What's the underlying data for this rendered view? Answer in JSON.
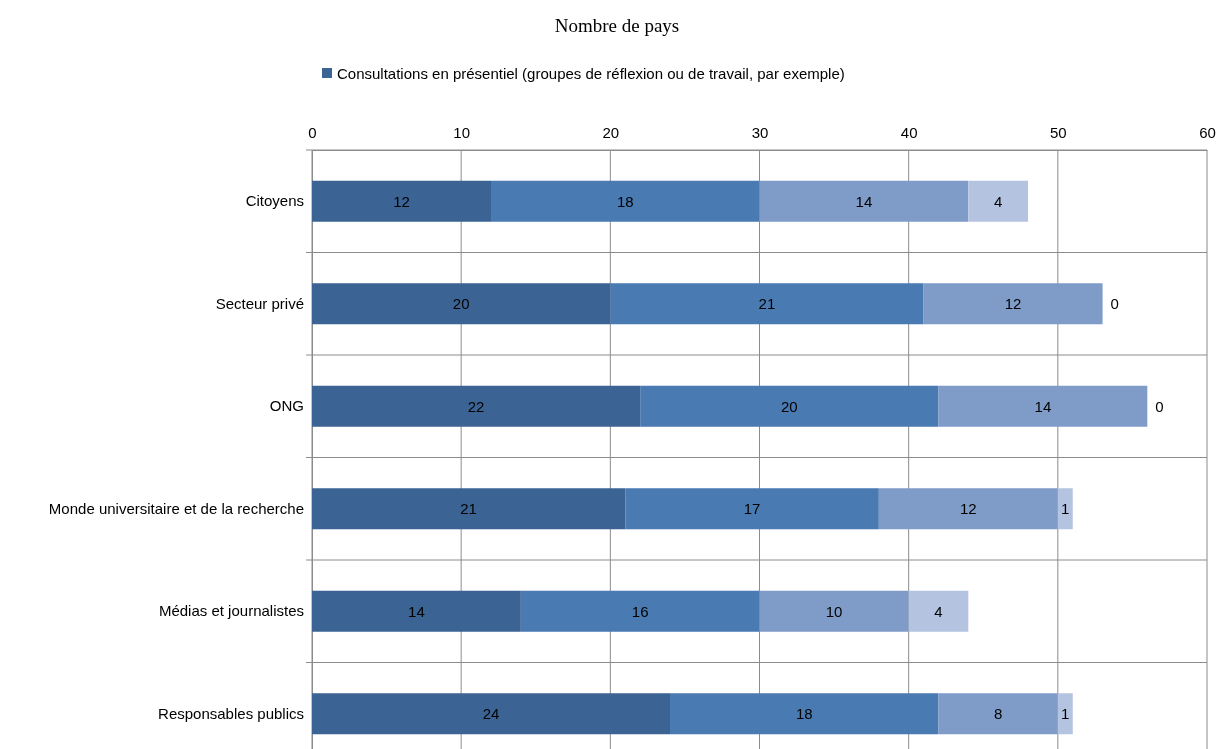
{
  "chart_data": {
    "type": "bar",
    "title": "Nombre de pays",
    "orientation": "horizontal",
    "stacked": true,
    "categories": [
      "Citoyens",
      "Secteur privé",
      "ONG",
      "Monde universitaire et de la recherche",
      "Médias et journalistes",
      "Responsables publics"
    ],
    "series": [
      {
        "name": "Consultations en présentiel (groupes de réflexion ou de travail, par exemple)",
        "color": "#3b6494",
        "values": [
          12,
          20,
          22,
          21,
          14,
          24
        ]
      },
      {
        "color": "#4a7ab2",
        "values": [
          18,
          21,
          20,
          17,
          16,
          18
        ]
      },
      {
        "color": "#7f9cc9",
        "values": [
          14,
          12,
          14,
          12,
          10,
          8
        ]
      },
      {
        "color": "#b4c4e0",
        "values": [
          4,
          0,
          0,
          1,
          4,
          1
        ]
      }
    ],
    "xlim": [
      0,
      60
    ],
    "xticks": [
      0,
      10,
      20,
      30,
      40,
      50,
      60
    ],
    "grid": true,
    "legend": "top",
    "data_labels": true
  }
}
